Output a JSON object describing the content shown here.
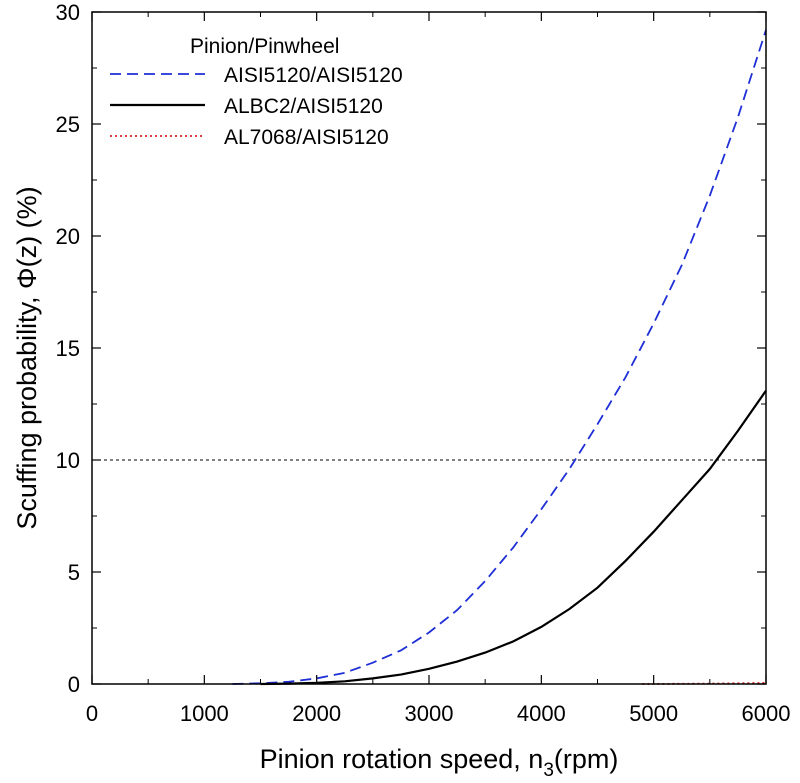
{
  "chart_data": {
    "type": "line",
    "xlabel": "Pinion rotation speed, n",
    "xlabel_sub": "3",
    "xlabel_unit": "(rpm)",
    "ylabel": "Scuffing probability, Φ(z) (%)",
    "xlim": [
      0,
      6000
    ],
    "ylim": [
      0,
      30
    ],
    "x_ticks": [
      0,
      1000,
      2000,
      3000,
      4000,
      5000,
      6000
    ],
    "y_ticks": [
      0,
      5,
      10,
      15,
      20,
      25,
      30
    ],
    "grid": false,
    "reference_line": {
      "y": 10,
      "style": "dashed",
      "color": "#000000"
    },
    "legend": {
      "title": "Pinion/Pinwheel",
      "position": "top-left"
    },
    "series": [
      {
        "name": "AISI5120/AISI5120",
        "style": "dashed",
        "color": "#1f2fd6",
        "x": [
          1250,
          1500,
          1750,
          2000,
          2250,
          2500,
          2750,
          3000,
          3250,
          3500,
          3750,
          4000,
          4250,
          4500,
          4750,
          5000,
          5250,
          5500,
          5750,
          6000
        ],
        "y": [
          0,
          0.03,
          0.1,
          0.25,
          0.5,
          0.95,
          1.5,
          2.3,
          3.3,
          4.6,
          6.1,
          7.8,
          9.6,
          11.6,
          13.7,
          16.1,
          18.7,
          21.8,
          25.3,
          29.2
        ]
      },
      {
        "name": "ALBC2/AISI5120",
        "style": "solid",
        "color": "#000000",
        "x": [
          1500,
          1750,
          2000,
          2250,
          2500,
          2750,
          3000,
          3250,
          3500,
          3750,
          4000,
          4250,
          4500,
          4750,
          5000,
          5250,
          5500,
          5750,
          6000
        ],
        "y": [
          0,
          0.02,
          0.05,
          0.12,
          0.25,
          0.42,
          0.68,
          1.0,
          1.4,
          1.9,
          2.55,
          3.35,
          4.3,
          5.5,
          6.8,
          8.2,
          9.6,
          11.3,
          13.1
        ]
      },
      {
        "name": "AL7068/AISI5120",
        "style": "dotted",
        "color": "#d62020",
        "x": [
          4900,
          5500,
          6000
        ],
        "y": [
          0,
          0.02,
          0.05
        ]
      }
    ]
  }
}
